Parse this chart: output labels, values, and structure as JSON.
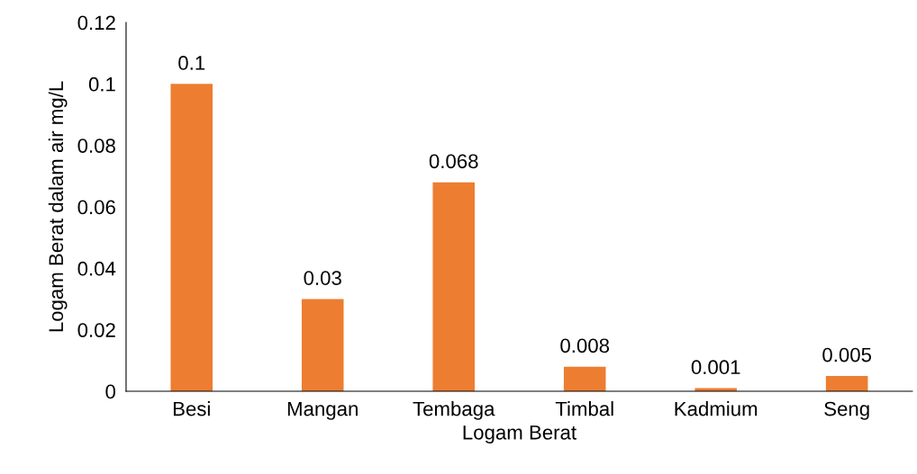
{
  "chart_data": {
    "type": "bar",
    "xlabel": "Logam Berat",
    "ylabel": "Logam Berat dalam air mg/L",
    "categories": [
      "Besi",
      "Mangan",
      "Tembaga",
      "Timbal",
      "Kadmium",
      "Seng"
    ],
    "values": [
      0.1,
      0.03,
      0.068,
      0.008,
      0.001,
      0.005
    ],
    "color": "#ed7d31",
    "ylim": [
      0,
      0.12
    ],
    "yticks": [
      0,
      0.02,
      0.04,
      0.06,
      0.08,
      0.1,
      0.12
    ],
    "data_labels": true,
    "grid": false,
    "legend": false
  }
}
